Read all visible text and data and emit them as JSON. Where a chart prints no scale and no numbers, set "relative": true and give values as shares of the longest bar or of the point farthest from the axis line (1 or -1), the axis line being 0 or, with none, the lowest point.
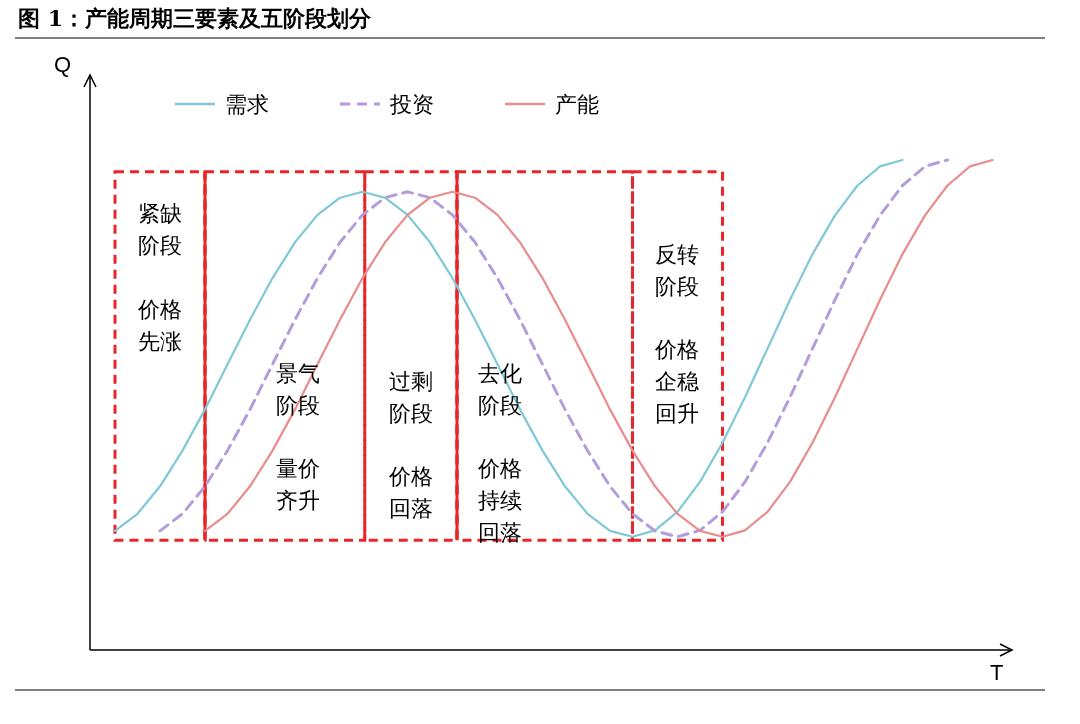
{
  "chart_data": {
    "type": "line",
    "relative": true,
    "title": "图 1：产能周期三要素及五阶段划分",
    "xlabel": "T",
    "ylabel": "Q",
    "legend": "top left",
    "marker": "none",
    "categories": [
      null,
      null,
      null,
      null,
      null,
      null,
      null,
      null,
      null,
      null,
      null,
      null,
      null,
      null,
      null,
      null,
      null,
      null,
      null,
      null,
      null,
      null,
      null,
      null,
      null,
      null,
      null,
      null,
      null,
      null,
      null,
      null,
      null,
      null,
      null,
      null,
      null,
      null,
      null,
      null
    ],
    "series": [
      {
        "name": "需求",
        "color": "#7ec8d8",
        "line_style": "solid",
        "values": [
          0.243,
          0.278,
          0.334,
          0.407,
          0.491,
          0.583,
          0.674,
          0.759,
          0.832,
          0.888,
          0.923,
          0.935,
          0.923,
          0.888,
          0.832,
          0.759,
          0.674,
          0.583,
          0.491,
          0.407,
          0.334,
          0.278,
          0.243,
          0.231,
          0.244,
          0.282,
          0.343,
          0.423,
          0.516,
          0.615,
          0.715,
          0.808,
          0.887,
          0.948,
          0.987,
          1.0,
          null,
          null,
          null,
          null
        ]
      },
      {
        "name": "投资",
        "color": "#b39ddb",
        "line_style": "dashed",
        "values": [
          null,
          null,
          0.243,
          0.278,
          0.334,
          0.407,
          0.491,
          0.583,
          0.674,
          0.759,
          0.832,
          0.888,
          0.923,
          0.935,
          0.923,
          0.888,
          0.832,
          0.759,
          0.674,
          0.583,
          0.491,
          0.407,
          0.334,
          0.278,
          0.243,
          0.231,
          0.244,
          0.282,
          0.343,
          0.423,
          0.516,
          0.615,
          0.715,
          0.808,
          0.887,
          0.948,
          0.987,
          1.0,
          null,
          null
        ]
      },
      {
        "name": "产能",
        "color": "#e88c8c",
        "line_style": "solid",
        "values": [
          null,
          null,
          null,
          null,
          0.243,
          0.278,
          0.334,
          0.407,
          0.491,
          0.583,
          0.674,
          0.759,
          0.832,
          0.888,
          0.923,
          0.935,
          0.923,
          0.888,
          0.832,
          0.759,
          0.674,
          0.583,
          0.491,
          0.407,
          0.334,
          0.278,
          0.243,
          0.231,
          0.244,
          0.282,
          0.343,
          0.423,
          0.516,
          0.615,
          0.715,
          0.808,
          0.887,
          0.948,
          0.987,
          1.0
        ]
      }
    ],
    "annotations": [
      "紧缺阶段",
      "价格先涨",
      "景气阶段",
      "量价齐升",
      "过剩阶段",
      "价格回落",
      "去化阶段",
      "价格持续回落",
      "反转阶段",
      "价格企稳回升"
    ]
  }
}
